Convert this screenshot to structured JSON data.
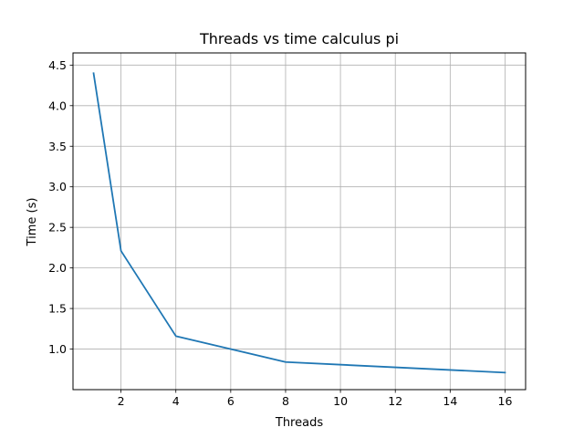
{
  "chart_data": {
    "type": "line",
    "title": "Threads vs time calculus pi",
    "xlabel": "Threads",
    "ylabel": "Time (s)",
    "xlim": [
      0.25,
      16.75
    ],
    "ylim": [
      0.5,
      4.65
    ],
    "xticks": [
      2,
      4,
      6,
      8,
      10,
      12,
      14,
      16
    ],
    "yticks": [
      1.0,
      1.5,
      2.0,
      2.5,
      3.0,
      3.5,
      4.0,
      4.5
    ],
    "xtick_labels": [
      "2",
      "4",
      "6",
      "8",
      "10",
      "12",
      "14",
      "16"
    ],
    "ytick_labels": [
      "1.0",
      "1.5",
      "2.0",
      "2.5",
      "3.0",
      "3.5",
      "4.0",
      "4.5"
    ],
    "grid": true,
    "series": [
      {
        "x": [
          1,
          2,
          4,
          8,
          16
        ],
        "values": [
          4.4,
          2.21,
          1.16,
          0.84,
          0.71
        ],
        "color": "#1f77b4"
      }
    ]
  }
}
